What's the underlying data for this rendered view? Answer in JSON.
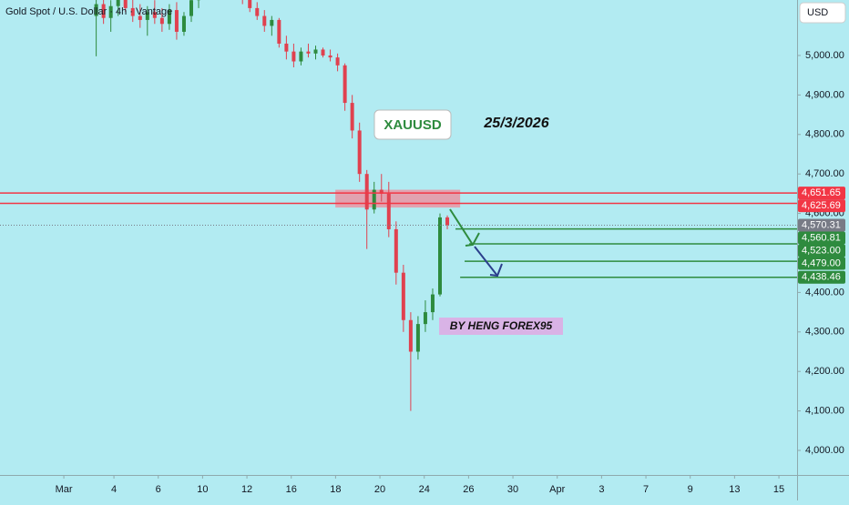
{
  "chart_data": {
    "type": "candlestick",
    "title": "Gold Spot / U.S. Dollar · 4h · Vantage",
    "currency": "USD",
    "annotations": {
      "symbol_box": "XAUUSD",
      "date": "25/3/2026",
      "author": "BY HENG FOREX95"
    },
    "up_color": "#2e8b3e",
    "down_color": "#e0414f",
    "xlim": [
      -5.14,
      30.82
    ],
    "ylim": [
      3937.8,
      5140.5
    ],
    "xticks": [
      {
        "value": -2.26,
        "label": "Mar"
      },
      {
        "value": 0,
        "label": "4"
      },
      {
        "value": 2,
        "label": "6"
      },
      {
        "value": 4,
        "label": "10"
      },
      {
        "value": 6,
        "label": "12"
      },
      {
        "value": 8,
        "label": "16"
      },
      {
        "value": 10,
        "label": "18"
      },
      {
        "value": 12,
        "label": "20"
      },
      {
        "value": 14,
        "label": "24"
      },
      {
        "value": 16,
        "label": "26"
      },
      {
        "value": 18,
        "label": "30"
      },
      {
        "value": 20,
        "label": "Apr"
      },
      {
        "value": 22,
        "label": "3"
      },
      {
        "value": 24,
        "label": "7"
      },
      {
        "value": 26,
        "label": "9"
      },
      {
        "value": 28,
        "label": "13"
      },
      {
        "value": 30,
        "label": "15"
      }
    ],
    "yticks": [
      {
        "value": 4000,
        "label": "4,000.00"
      },
      {
        "value": 4100,
        "label": "4,100.00"
      },
      {
        "value": 4200,
        "label": "4,200.00"
      },
      {
        "value": 4300,
        "label": "4,300.00"
      },
      {
        "value": 4400,
        "label": "4,400.00"
      },
      {
        "value": 4500,
        "label": "4,500.00"
      },
      {
        "value": 4600,
        "label": "4,600.00"
      },
      {
        "value": 4700,
        "label": "4,700.00"
      },
      {
        "value": 4800,
        "label": "4,800.00"
      },
      {
        "value": 4900,
        "label": "4,900.00"
      },
      {
        "value": 5000,
        "label": "5,000.00"
      }
    ],
    "x": [
      -0.8,
      -0.47,
      -0.14,
      0.19,
      0.52,
      0.85,
      1.18,
      1.51,
      1.84,
      2.17,
      2.5,
      2.83,
      3.16,
      3.49,
      3.82,
      4.15,
      4.48,
      4.81,
      5.14,
      5.47,
      5.8,
      6.13,
      6.46,
      6.79,
      7.12,
      7.45,
      7.78,
      8.11,
      8.44,
      8.77,
      9.1,
      9.43,
      9.76,
      10.09,
      10.42,
      10.75,
      11.08,
      11.41,
      11.74,
      12.07,
      12.4,
      12.73,
      13.06,
      13.39,
      13.72,
      14.05,
      14.38,
      14.71,
      15.04
    ],
    "open": [
      5100,
      5130,
      5095,
      5125,
      5150,
      5120,
      5100,
      5090,
      5110,
      5095,
      5080,
      5115,
      5060,
      5100,
      5140,
      5160,
      5180,
      5175,
      5185,
      5170,
      5175,
      5150,
      5120,
      5100,
      5075,
      5090,
      5030,
      5010,
      4985,
      5010,
      5005,
      5015,
      5000,
      4995,
      4975,
      4880,
      4810,
      4700,
      4610,
      4660,
      4650,
      4560,
      4450,
      4330,
      4250,
      4320,
      4350,
      4395,
      4590
    ],
    "high": [
      5150,
      5160,
      5140,
      5165,
      5170,
      5145,
      5130,
      5125,
      5140,
      5120,
      5130,
      5135,
      5110,
      5150,
      5170,
      5190,
      5200,
      5195,
      5200,
      5190,
      5185,
      5160,
      5135,
      5115,
      5100,
      5095,
      5050,
      5030,
      5020,
      5030,
      5025,
      5020,
      5015,
      5005,
      4980,
      4900,
      4830,
      4710,
      4680,
      4700,
      4680,
      4580,
      4470,
      4350,
      4340,
      4380,
      4410,
      4600,
      4595
    ],
    "low": [
      4998,
      5080,
      5060,
      5100,
      5110,
      5085,
      5070,
      5050,
      5080,
      5060,
      5065,
      5040,
      5050,
      5085,
      5120,
      5150,
      5160,
      5160,
      5165,
      5150,
      5130,
      5110,
      5090,
      5060,
      5050,
      5020,
      4990,
      4970,
      4975,
      4995,
      4990,
      4995,
      4985,
      4960,
      4860,
      4790,
      4680,
      4510,
      4600,
      4630,
      4540,
      4420,
      4300,
      4100,
      4230,
      4300,
      4330,
      4390,
      4560
    ],
    "close": [
      5130,
      5095,
      5125,
      5150,
      5120,
      5100,
      5090,
      5110,
      5095,
      5080,
      5115,
      5060,
      5100,
      5140,
      5160,
      5180,
      5175,
      5185,
      5170,
      5175,
      5150,
      5120,
      5100,
      5075,
      5090,
      5030,
      5010,
      4985,
      5010,
      5005,
      5015,
      5000,
      4995,
      4975,
      4880,
      4810,
      4700,
      4610,
      4660,
      4650,
      4560,
      4450,
      4330,
      4250,
      4320,
      4350,
      4395,
      4590,
      4570.31
    ],
    "zone": {
      "x": [
        9.99,
        15.62
      ],
      "y": [
        4660,
        4615
      ],
      "color": "#f08a9a"
    },
    "levels": [
      {
        "value": 4651.65,
        "label": "4,651.65",
        "color": "#f23645",
        "from": -5.14,
        "style": "solid"
      },
      {
        "value": 4625.69,
        "label": "4,625.69",
        "color": "#f23645",
        "from": -5.14,
        "style": "solid"
      },
      {
        "value": 4570.31,
        "label": "4,570.31",
        "color": "#787b86",
        "from": -5.14,
        "style": "dotted"
      },
      {
        "value": 4560.81,
        "label": "4,560.81",
        "color": "#2e8b3e",
        "from": 15.41,
        "style": "solid"
      },
      {
        "value": 4523.0,
        "label": "4,523.00",
        "color": "#2e8b3e",
        "from": 16.03,
        "style": "solid"
      },
      {
        "value": 4479.0,
        "label": "4,479.00",
        "color": "#2e8b3e",
        "from": 15.82,
        "style": "solid"
      },
      {
        "value": 4438.46,
        "label": "4,438.46",
        "color": "#2e8b3e",
        "from": 15.62,
        "style": "solid"
      }
    ]
  }
}
